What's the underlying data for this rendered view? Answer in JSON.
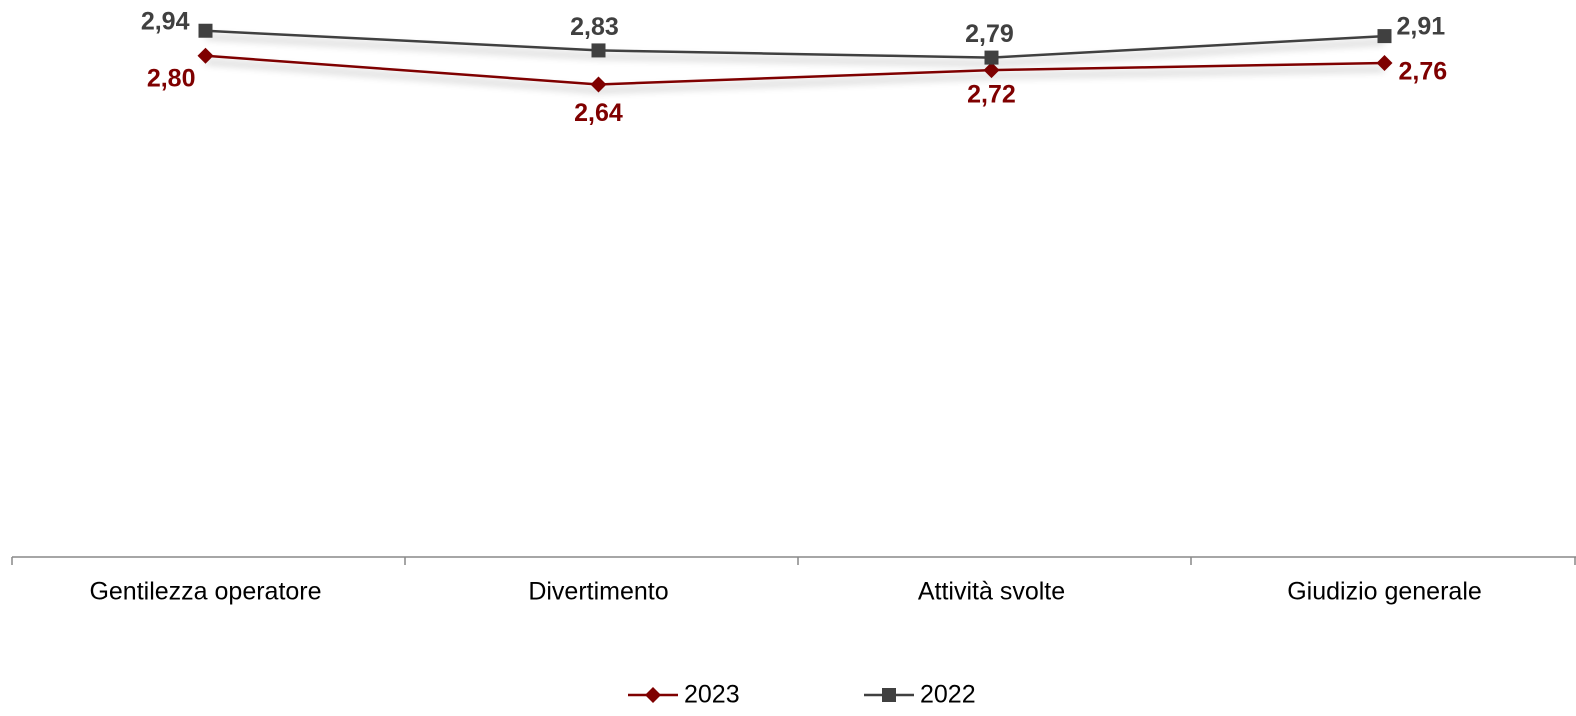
{
  "chart_data": {
    "type": "line",
    "categories": [
      "Gentilezza operatore",
      "Divertimento",
      "Attività svolte",
      "Giudizio generale"
    ],
    "series": [
      {
        "name": "2023",
        "color": "#7f0000",
        "marker": "diamond",
        "values": [
          2.8,
          2.64,
          2.72,
          2.76
        ],
        "value_labels": [
          "2,80",
          "2,64",
          "2,72",
          "2,76"
        ]
      },
      {
        "name": "2022",
        "color": "#404040",
        "marker": "square",
        "values": [
          2.94,
          2.83,
          2.79,
          2.91
        ],
        "value_labels": [
          "2,94",
          "2,83",
          "2,79",
          "2,91"
        ]
      }
    ],
    "ylim": [
      0,
      3
    ],
    "legend": "bottom"
  }
}
